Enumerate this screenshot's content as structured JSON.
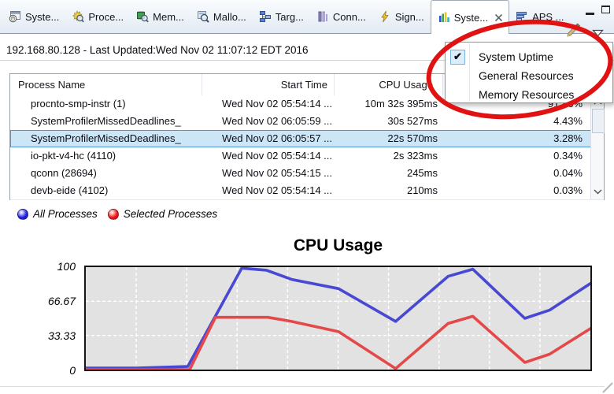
{
  "window": {
    "minimize": "minimize",
    "maximize": "maximize"
  },
  "tabs": [
    {
      "label": "Syste...",
      "icon": "system-profiler",
      "active": false,
      "closable": false
    },
    {
      "label": "Proce...",
      "icon": "process-inspector",
      "active": false,
      "closable": false
    },
    {
      "label": "Mem...",
      "icon": "memory-analysis",
      "active": false,
      "closable": false
    },
    {
      "label": "Mallo...",
      "icon": "malloc-information",
      "active": false,
      "closable": false
    },
    {
      "label": "Targ...",
      "icon": "target-navigator",
      "active": false,
      "closable": false
    },
    {
      "label": "Conn...",
      "icon": "connection-information",
      "active": false,
      "closable": false
    },
    {
      "label": "Sign...",
      "icon": "signal-information",
      "active": false,
      "closable": false
    },
    {
      "label": "Syste...",
      "icon": "system-summary",
      "active": true,
      "closable": true
    },
    {
      "label": "APS ...",
      "icon": "aps-view",
      "active": false,
      "closable": false
    }
  ],
  "header": {
    "text": "192.168.80.128  - Last Updated:Wed Nov 02 11:07:12 EDT 2016"
  },
  "menu": {
    "check_glyph": "✔",
    "items": [
      {
        "label": "System Uptime",
        "checked": true
      },
      {
        "label": "General Resources",
        "checked": false
      },
      {
        "label": "Memory Resources",
        "checked": false
      }
    ]
  },
  "table": {
    "columns": [
      "Process Name",
      "Start Time",
      "CPU Usage",
      ""
    ],
    "rows": [
      {
        "name": "procnto-smp-instr (1)",
        "start_time": "Wed Nov 02 05:54:14 ...",
        "cpu_usage": "10m 32s 395ms",
        "cpu_percent": "91.86%",
        "selected": false
      },
      {
        "name": "SystemProfilerMissedDeadlines_",
        "start_time": "Wed Nov 02 06:05:59 ...",
        "cpu_usage": "30s 527ms",
        "cpu_percent": "4.43%",
        "selected": false
      },
      {
        "name": "SystemProfilerMissedDeadlines_",
        "start_time": "Wed Nov 02 06:05:57 ...",
        "cpu_usage": "22s 570ms",
        "cpu_percent": "3.28%",
        "selected": true
      },
      {
        "name": "io-pkt-v4-hc (4110)",
        "start_time": "Wed Nov 02 05:54:14 ...",
        "cpu_usage": "2s 323ms",
        "cpu_percent": "0.34%",
        "selected": false
      },
      {
        "name": "qconn (28694)",
        "start_time": "Wed Nov 02 05:54:15 ...",
        "cpu_usage": "245ms",
        "cpu_percent": "0.04%",
        "selected": false
      },
      {
        "name": "devb-eide (4102)",
        "start_time": "Wed Nov 02 05:54:14 ...",
        "cpu_usage": "210ms",
        "cpu_percent": "0.03%",
        "selected": false
      }
    ]
  },
  "legend": [
    {
      "label": "All Processes",
      "color": "#1c1ce0"
    },
    {
      "label": "Selected Processes",
      "color": "#ee1111"
    }
  ],
  "chart_data": {
    "type": "line",
    "title": "CPU Usage",
    "xlabel": "",
    "ylabel": "",
    "ylim": [
      0,
      100
    ],
    "yticks": [
      100,
      66.67,
      33.33,
      0
    ],
    "ytick_labels": [
      "100",
      "66.67",
      "33.33",
      "0"
    ],
    "grid": true,
    "plot_bg": "#e2e2e2",
    "x_unit": "fraction-of-width",
    "series": [
      {
        "name": "All Processes",
        "color": "#4848d2",
        "points": [
          [
            0,
            1.5
          ],
          [
            0.101,
            1.5
          ],
          [
            0.202,
            3
          ],
          [
            0.309,
            99
          ],
          [
            0.358,
            97
          ],
          [
            0.408,
            88
          ],
          [
            0.501,
            79
          ],
          [
            0.614,
            47
          ],
          [
            0.718,
            91
          ],
          [
            0.767,
            98
          ],
          [
            0.87,
            50
          ],
          [
            0.919,
            58
          ],
          [
            1,
            84
          ]
        ]
      },
      {
        "name": "Selected Processes",
        "color": "#e44848",
        "points": [
          [
            0,
            0
          ],
          [
            0.206,
            0
          ],
          [
            0.257,
            51
          ],
          [
            0.361,
            51
          ],
          [
            0.408,
            47
          ],
          [
            0.501,
            37
          ],
          [
            0.614,
            1
          ],
          [
            0.718,
            45
          ],
          [
            0.767,
            52
          ],
          [
            0.87,
            7
          ],
          [
            0.919,
            15
          ],
          [
            1,
            40
          ]
        ]
      }
    ]
  },
  "annotation": {
    "shape": "ellipse",
    "color": "#e01212"
  }
}
